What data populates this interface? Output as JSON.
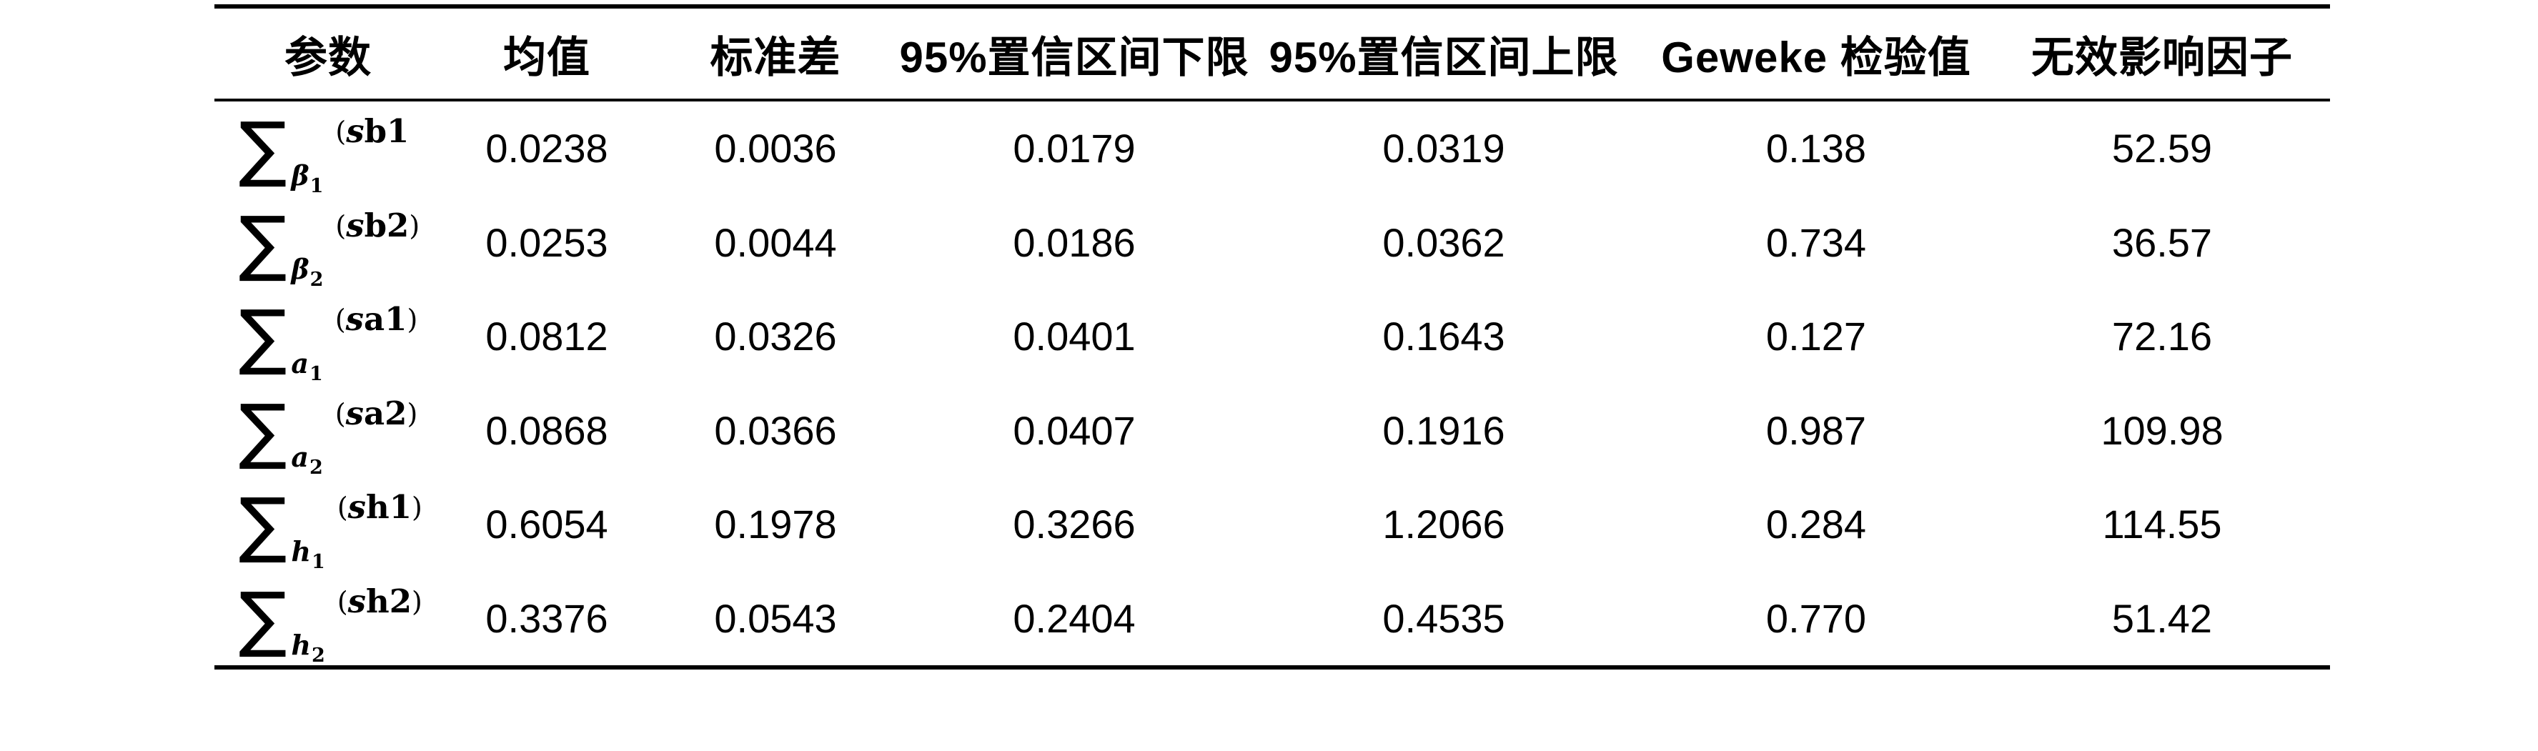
{
  "table": {
    "headers": [
      "参数",
      "均值",
      "标准差",
      "95%置信区间下限",
      "95%置信区间上限",
      "Geweke 检验值",
      "无效影响因子"
    ],
    "rows": [
      {
        "param": {
          "sigma": "∑",
          "sub": "β",
          "subnum": "1",
          "open": "(",
          "s": "s",
          "rest": "b1",
          "close": ""
        },
        "mean": "0.0238",
        "std": "0.0036",
        "lower": "0.0179",
        "upper": "0.0319",
        "geweke": "0.138",
        "ief": "52.59"
      },
      {
        "param": {
          "sigma": "∑",
          "sub": "β",
          "subnum": "2",
          "open": "(",
          "s": "s",
          "rest": "b2",
          "close": ")"
        },
        "mean": "0.0253",
        "std": "0.0044",
        "lower": "0.0186",
        "upper": "0.0362",
        "geweke": "0.734",
        "ief": "36.57"
      },
      {
        "param": {
          "sigma": "∑",
          "sub": "a",
          "subnum": "1",
          "open": "(",
          "s": "s",
          "rest": "a1",
          "close": ")"
        },
        "mean": "0.0812",
        "std": "0.0326",
        "lower": "0.0401",
        "upper": "0.1643",
        "geweke": "0.127",
        "ief": "72.16"
      },
      {
        "param": {
          "sigma": "∑",
          "sub": "a",
          "subnum": "2",
          "open": "(",
          "s": "s",
          "rest": "a2",
          "close": ")"
        },
        "mean": "0.0868",
        "std": "0.0366",
        "lower": "0.0407",
        "upper": "0.1916",
        "geweke": "0.987",
        "ief": "109.98"
      },
      {
        "param": {
          "sigma": "∑",
          "sub": "h",
          "subnum": "1",
          "open": "(",
          "s": "s",
          "rest": "h1",
          "close": ")"
        },
        "mean": "0.6054",
        "std": "0.1978",
        "lower": "0.3266",
        "upper": "1.2066",
        "geweke": "0.284",
        "ief": "114.55"
      },
      {
        "param": {
          "sigma": "∑",
          "sub": "h",
          "subnum": "2",
          "open": "(",
          "s": "s",
          "rest": "h2",
          "close": ")"
        },
        "mean": "0.3376",
        "std": "0.0543",
        "lower": "0.2404",
        "upper": "0.4535",
        "geweke": "0.770",
        "ief": "51.42"
      }
    ]
  },
  "colors": {
    "text": "#000000",
    "background": "#ffffff",
    "rule": "#000000"
  }
}
